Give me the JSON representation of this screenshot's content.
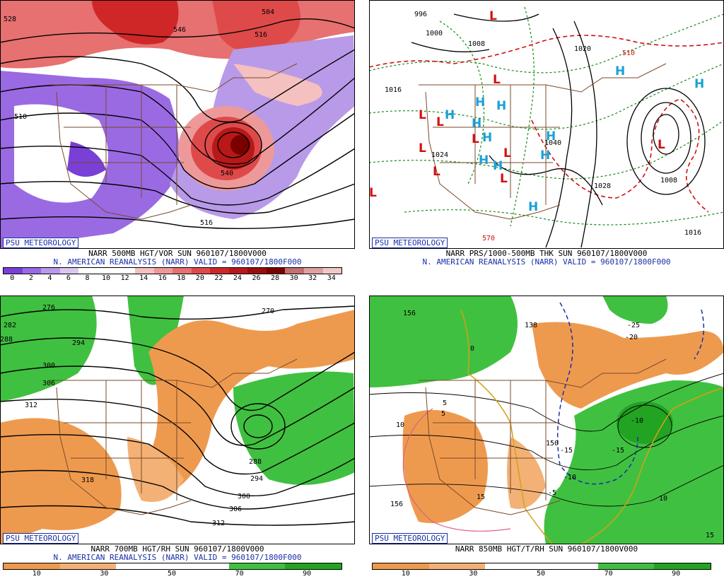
{
  "brand_label": "PSU METEOROLOGY",
  "panels": [
    {
      "title": "NARR 500MB HGT/VOR SUN 960107/1800V000",
      "subtitle": "N. AMERICAN REANALYSIS (NARR) VALID = 960107/1800F000",
      "colorbar_ticks": [
        "0",
        "2",
        "4",
        "6",
        "8",
        "10",
        "12",
        "14",
        "16",
        "18",
        "20",
        "22",
        "24",
        "26",
        "28",
        "30",
        "32",
        "34"
      ],
      "contour_labels": [
        "528",
        "540",
        "516",
        "504",
        "546",
        "510",
        "516",
        "546"
      ]
    },
    {
      "title": "NARR PRS/1000-500MB THK SUN 960107/1800V000",
      "subtitle": "N. AMERICAN REANALYSIS (NARR) VALID = 960107/1800F000",
      "contour_labels": [
        "996",
        "1000",
        "1008",
        "1016",
        "1024",
        "1028",
        "1040",
        "1008",
        "1016",
        "510",
        "570",
        "1020",
        "1024"
      ]
    },
    {
      "title": "NARR 700MB HGT/RH SUN 960107/1800V000",
      "subtitle": "N. AMERICAN REANALYSIS (NARR) VALID = 960107/1800F000",
      "colorbar_ticks": [
        "10",
        "30",
        "50",
        "70",
        "90"
      ],
      "contour_labels": [
        "276",
        "270",
        "282",
        "288",
        "294",
        "300",
        "306",
        "312",
        "318",
        "288",
        "294",
        "300",
        "306",
        "312"
      ]
    },
    {
      "title": "NARR 850MB HGT/T/RH SUN 960107/1800V000",
      "colorbar_ticks": [
        "10",
        "30",
        "50",
        "70",
        "90"
      ],
      "contour_labels": [
        "156",
        "138",
        "150",
        "156",
        "5",
        "0",
        "-5",
        "-10",
        "-15",
        "10",
        "15",
        "-25",
        "-20",
        "-10",
        "-15",
        "5",
        "10",
        "15",
        "0",
        "5",
        "0",
        "-5",
        "-10",
        "-15"
      ]
    }
  ],
  "symbols": {
    "low": "L",
    "high": "H"
  },
  "colors": {
    "vorticity_scale": [
      "#7a3fd6",
      "#9a6ae3",
      "#b89ae8",
      "#d8c8f0",
      "#ffffff",
      "#ffffff",
      "#ffffff",
      "#f4c0c0",
      "#ee9999",
      "#e77070",
      "#de4a4a",
      "#cf2727",
      "#b81818",
      "#9a0d0d",
      "#7a0000",
      "#c07070",
      "#e0a0a0",
      "#f0c8c8"
    ],
    "rh_scale": [
      "#ee9a4e",
      "#f3b176",
      "#ffffff",
      "#ffffff",
      "#40c040",
      "#22a322"
    ],
    "height_contour": "#000000",
    "thickness_contour": "#d21010",
    "isobar": "#000000",
    "dashed_green": "#138a13",
    "border": "#7a4a2a",
    "low_marker": "#d21010",
    "high_marker": "#1aa0d8",
    "brand": "#1a2fa6"
  }
}
